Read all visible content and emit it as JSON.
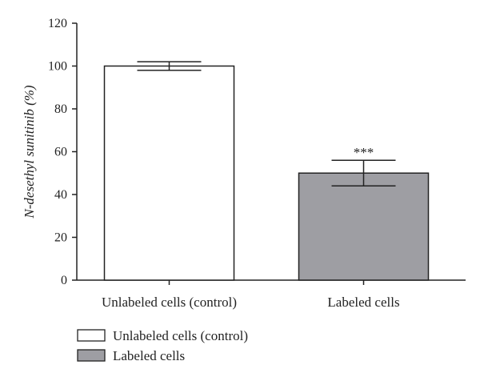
{
  "chart_data": {
    "type": "bar",
    "title": "",
    "xlabel": "",
    "ylabel": "N-desethyl sunitinib (%)",
    "ylim": [
      0,
      120
    ],
    "yticks": [
      0,
      20,
      40,
      60,
      80,
      100,
      120
    ],
    "categories": [
      "Unlabeled cells (control)",
      "Labeled cells"
    ],
    "values": [
      100,
      50
    ],
    "errors": [
      2,
      6
    ],
    "bar_colors": [
      "#ffffff",
      "#9e9ea3"
    ],
    "annotations": [
      {
        "category": "Labeled cells",
        "text": "***"
      }
    ],
    "legend": {
      "placement": "bottom-left",
      "entries": [
        {
          "label": "Unlabeled cells (control)",
          "color": "#ffffff"
        },
        {
          "label": "Labeled cells",
          "color": "#9e9ea3"
        }
      ]
    },
    "grid": false
  }
}
